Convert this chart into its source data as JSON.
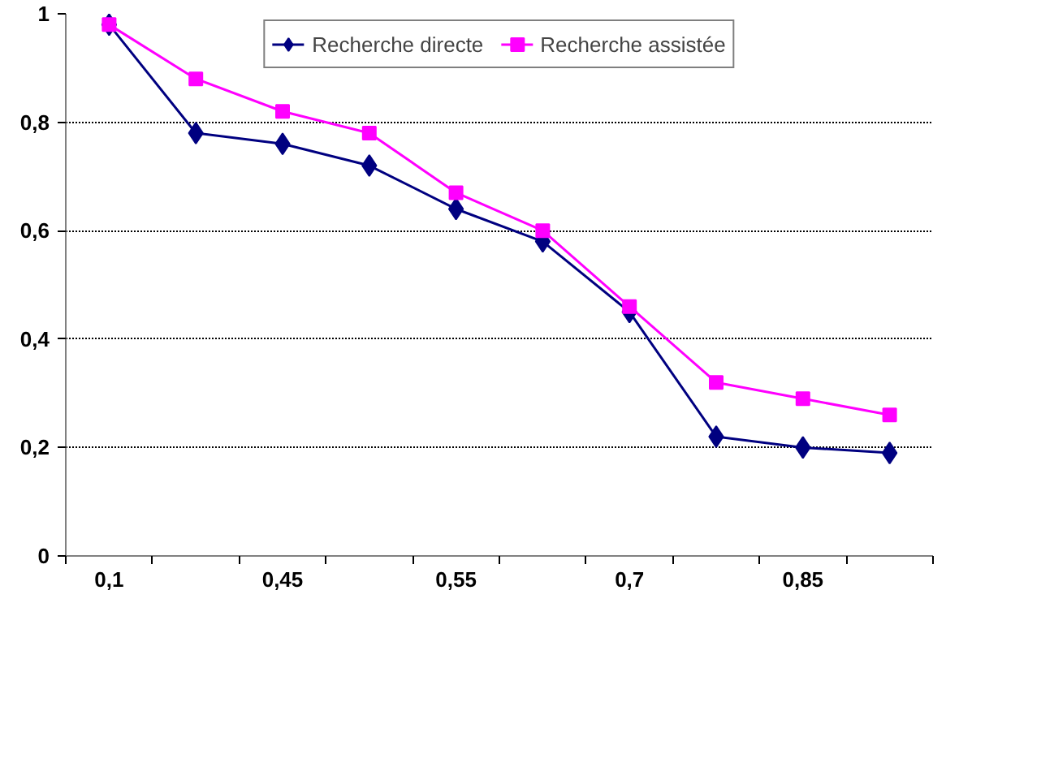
{
  "chart_data": {
    "type": "line",
    "categories": [
      "0,1",
      null,
      "0,45",
      null,
      "0,55",
      null,
      "0,7",
      null,
      "0,85",
      null
    ],
    "series": [
      {
        "name": "Recherche directe",
        "color": "#000080",
        "marker": "diamond",
        "values": [
          0.98,
          0.78,
          0.76,
          0.72,
          0.64,
          0.58,
          0.45,
          0.22,
          0.2,
          0.19
        ]
      },
      {
        "name": "Recherche assistée",
        "color": "#ff00ff",
        "marker": "square",
        "values": [
          0.98,
          0.88,
          0.82,
          0.78,
          0.67,
          0.6,
          0.46,
          0.32,
          0.29,
          0.26
        ]
      }
    ],
    "ylim": [
      0,
      1
    ],
    "yticks": [
      0,
      {
        "value": 0.2,
        "label": "0,2"
      },
      {
        "value": 0.4,
        "label": "0,4"
      },
      {
        "value": 0.6,
        "label": "0,6"
      },
      {
        "value": 0.8,
        "label": "0,8"
      },
      1
    ],
    "grid": "y",
    "legend": "top",
    "line_style": "solid"
  }
}
